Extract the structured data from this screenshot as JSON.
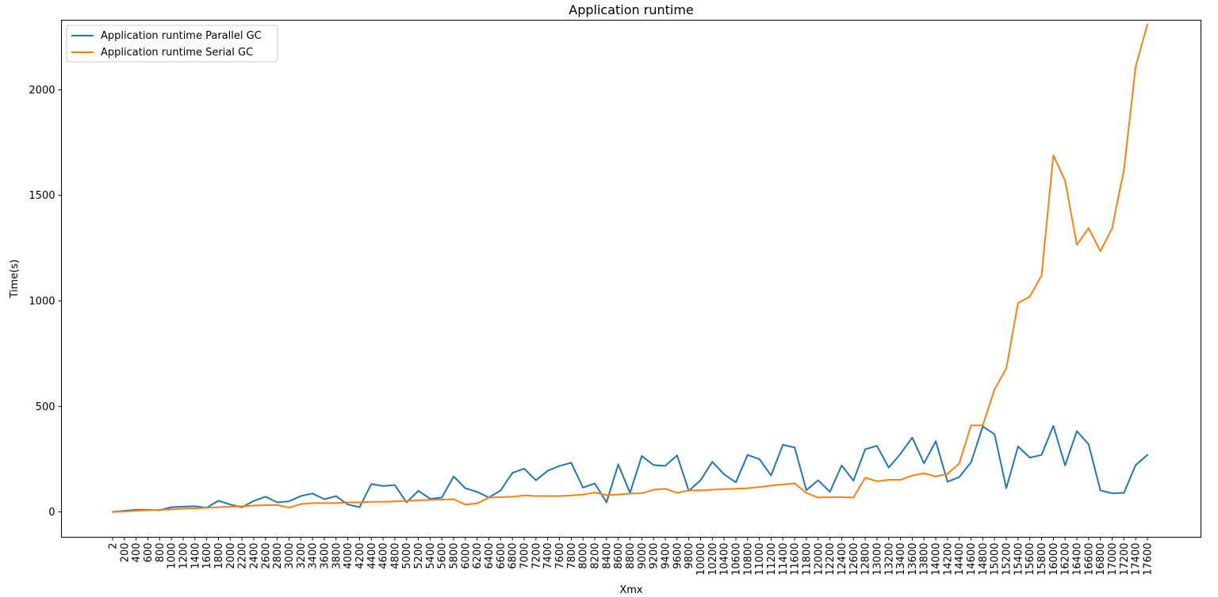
{
  "chart_data": {
    "type": "line",
    "title": "Application runtime",
    "xlabel": "Xmx",
    "ylabel": "Time(s)",
    "ylim": [
      -120,
      2330
    ],
    "yticks": [
      0,
      500,
      1000,
      1500,
      2000
    ],
    "grid": false,
    "legend_position": "top-left",
    "categories": [
      "2",
      "200",
      "400",
      "600",
      "800",
      "1000",
      "1200",
      "1400",
      "1600",
      "1800",
      "2000",
      "2200",
      "2400",
      "2600",
      "2800",
      "3000",
      "3200",
      "3400",
      "3600",
      "3800",
      "4000",
      "4200",
      "4400",
      "4600",
      "4800",
      "5000",
      "5200",
      "5400",
      "5600",
      "5800",
      "6000",
      "6200",
      "6400",
      "6600",
      "6800",
      "7000",
      "7200",
      "7400",
      "7600",
      "7800",
      "8000",
      "8200",
      "8400",
      "8600",
      "8800",
      "9000",
      "9200",
      "9400",
      "9600",
      "9800",
      "10000",
      "10200",
      "10400",
      "10600",
      "10800",
      "11000",
      "11200",
      "11400",
      "11600",
      "11800",
      "12000",
      "12200",
      "12400",
      "12600",
      "12800",
      "13000",
      "13200",
      "13400",
      "13600",
      "13800",
      "14000",
      "14200",
      "14400",
      "14600",
      "14800",
      "15000",
      "15200",
      "15400",
      "15600",
      "15800",
      "16000",
      "16200",
      "16400",
      "16600",
      "16800",
      "17000",
      "17200",
      "17400",
      "17600"
    ],
    "series": [
      {
        "name": "Application runtime Parallel GC",
        "color": "#1f77b4",
        "values": [
          0,
          5,
          10,
          10,
          8,
          22,
          25,
          27,
          20,
          53,
          35,
          22,
          52,
          72,
          45,
          50,
          75,
          87,
          60,
          75,
          35,
          22,
          132,
          123,
          127,
          45,
          100,
          62,
          68,
          168,
          112,
          95,
          68,
          102,
          185,
          205,
          150,
          195,
          218,
          233,
          115,
          135,
          45,
          225,
          90,
          265,
          222,
          218,
          268,
          100,
          150,
          237,
          178,
          140,
          270,
          250,
          173,
          318,
          305,
          103,
          150,
          95,
          220,
          148,
          297,
          313,
          210,
          275,
          352,
          230,
          335,
          143,
          165,
          235,
          405,
          368,
          112,
          310,
          257,
          270,
          408,
          220,
          383,
          320,
          102,
          88,
          90,
          222,
          270
        ]
      },
      {
        "name": "Application runtime Serial GC",
        "color": "#ff7f0e",
        "values": [
          0,
          2,
          5,
          8,
          10,
          12,
          15,
          17,
          20,
          22,
          25,
          27,
          30,
          32,
          33,
          20,
          37,
          42,
          42,
          42,
          45,
          45,
          48,
          48,
          50,
          52,
          55,
          57,
          58,
          60,
          35,
          40,
          68,
          70,
          72,
          78,
          75,
          75,
          75,
          78,
          82,
          92,
          80,
          82,
          87,
          88,
          105,
          110,
          90,
          102,
          102,
          105,
          108,
          110,
          112,
          118,
          125,
          130,
          135,
          90,
          68,
          70,
          70,
          68,
          162,
          145,
          152,
          152,
          172,
          183,
          168,
          180,
          230,
          410,
          410,
          580,
          680,
          990,
          1020,
          1120,
          1690,
          1570,
          1265,
          1345,
          1235,
          1345,
          1620,
          2110,
          2310
        ]
      }
    ]
  }
}
